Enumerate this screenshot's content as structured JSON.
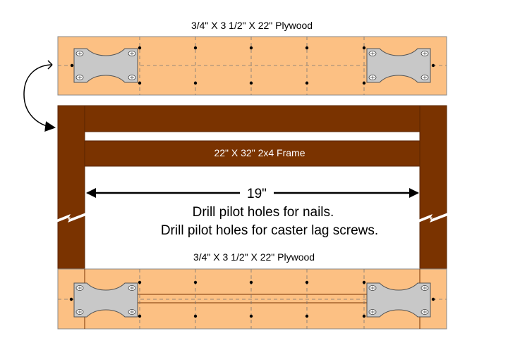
{
  "top_board": {
    "label": "3/4\" X 3 1/2\" X 22\" Plywood"
  },
  "frame": {
    "label": "22\" X 32\"  2x4 Frame"
  },
  "dimension": {
    "label": "19\""
  },
  "instructions": {
    "line1": "Drill pilot holes for nails.",
    "line2": "Drill pilot holes for caster lag screws."
  },
  "bottom_board": {
    "label": "3/4\" X 3 1/2\" X 22\" Plywood"
  },
  "colors": {
    "plywood": "#fcc083",
    "lumber": "#7a3300",
    "caster_plate": "#c8c8c8",
    "outline": "#555555"
  }
}
